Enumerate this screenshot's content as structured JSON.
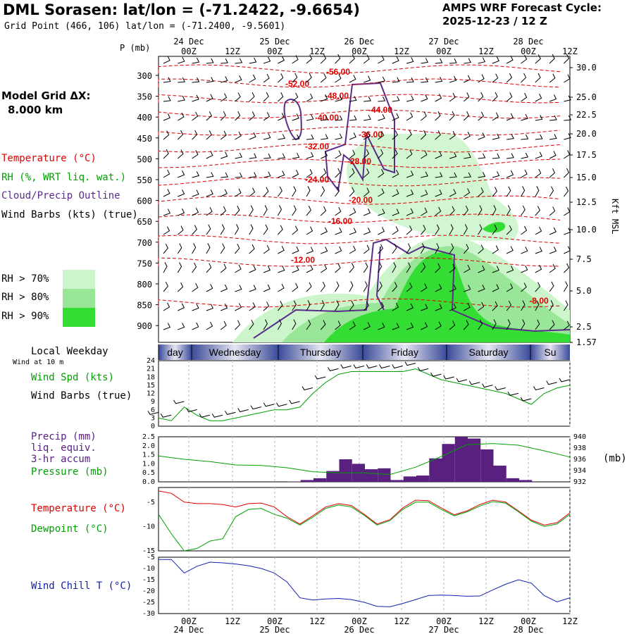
{
  "header": {
    "title": "DML Sorasen:  lat/lon = (-71.2422, -9.6654)",
    "grid_point": "Grid Point (466, 106) lat/lon = (-71.2400, -9.5601)",
    "forecast_line1": "AMPS WRF Forecast Cycle:",
    "forecast_line2": "2025-12-23 / 12  Z"
  },
  "left_labels": {
    "model_grid": "Model Grid ΔX:",
    "model_grid_value": "8.000 km",
    "temperature": "Temperature (°C)",
    "rh": "RH (%, WRT liq. wat.)",
    "cloud": "Cloud/Precip Outline",
    "wind_barbs": "Wind Barbs (kts) (true)",
    "rh70": "RH > 70%",
    "rh80": "RH > 80%",
    "rh90": "RH > 90%",
    "local_weekday": "Local Weekday",
    "wind_10m": "Wind at 10 m",
    "wind_spd": "Wind Spd (kts)",
    "wind_barbs2": "Wind Barbs (true)",
    "precip1": "Precip (mm)",
    "precip2": "liq. equiv.",
    "precip3": "3-hr accum",
    "pressure": "Pressure (mb)",
    "pressure_unit": "(mb)",
    "temp2": "Temperature (°C)",
    "dewpoint": "Dewpoint (°C)",
    "windchill": "Wind Chill T (°C)",
    "p_mb": "P (mb)",
    "kft": "Kft MSL"
  },
  "colors": {
    "temperature": "#e00000",
    "rh": "#00a000",
    "cloud": "#5a2d8a",
    "precip": "#5a2080",
    "windchill": "#1020b0",
    "rh70": "#ccf5cc",
    "rh80": "#99e699",
    "rh90": "#33dd33"
  },
  "time_axis": {
    "hour_labels": [
      "00Z",
      "12Z",
      "00Z",
      "12Z",
      "00Z",
      "12Z",
      "00Z",
      "12Z",
      "00Z",
      "12Z"
    ],
    "date_labels": [
      "24 Dec",
      "25 Dec",
      "26 Dec",
      "27 Dec",
      "28 Dec"
    ],
    "weekdays": [
      "day",
      "Wednesday",
      "Thursday",
      "Friday",
      "Saturday",
      "Su"
    ]
  },
  "chart_data": [
    {
      "type": "heatmap",
      "title": "",
      "y_axis_left_label": "P (mb)",
      "pressure_levels": [
        300,
        350,
        400,
        450,
        500,
        550,
        600,
        650,
        700,
        750,
        800,
        850,
        900
      ],
      "height_labels_kft": [
        "30.0",
        "25.0",
        "22.5",
        "20.0",
        "17.5",
        "15.0",
        "12.5",
        "10.0",
        "7.5",
        "5.0",
        "2.5",
        "1.57"
      ],
      "isotherm_labels": [
        "-56.00",
        "-52.00",
        "-48.00",
        "-44.00",
        "-40.00",
        "-36.00",
        "-32.00",
        "-28.00",
        "-24.00",
        "-20.00",
        "-16.00",
        "-12.00",
        "-8.00"
      ]
    },
    {
      "type": "line",
      "name": "Wind Spd (kts)",
      "ylim": [
        0,
        24
      ],
      "yticks": [
        "0",
        "3",
        "6",
        "9",
        "12",
        "15",
        "18",
        "21",
        "24"
      ],
      "x_hours": [
        0,
        3,
        6,
        9,
        12,
        15,
        18,
        21,
        24,
        27,
        30,
        33,
        36,
        39,
        42,
        45,
        48,
        51,
        54,
        57,
        60,
        63,
        66,
        69,
        72,
        75,
        78,
        81,
        84,
        87,
        90,
        93,
        96
      ],
      "values": [
        3,
        2,
        7,
        4,
        2,
        2,
        3,
        4,
        5,
        6,
        6,
        7,
        12,
        16,
        19,
        20,
        20,
        20,
        20,
        20,
        21,
        19,
        17,
        16,
        15,
        14,
        13,
        12,
        10,
        8,
        12,
        14,
        15
      ]
    },
    {
      "type": "bar",
      "name": "Precip (mm)",
      "ylim": [
        0,
        2.5
      ],
      "yticks": [
        "0.0",
        "0.5",
        "1.0",
        "1.5",
        "2.0",
        "2.5"
      ],
      "x_hours": [
        30,
        33,
        36,
        39,
        42,
        45,
        48,
        51,
        54,
        57,
        60,
        63,
        66,
        69,
        72,
        75,
        78,
        81,
        84
      ],
      "values": [
        0.02,
        0.1,
        0.2,
        0.6,
        1.25,
        1.0,
        0.7,
        0.75,
        0.1,
        0.3,
        0.35,
        1.3,
        2.1,
        2.5,
        2.4,
        1.8,
        0.9,
        0.2,
        0.1
      ]
    },
    {
      "type": "line",
      "name": "Pressure (mb)",
      "ylim": [
        932,
        940
      ],
      "yticks": [
        "932",
        "934",
        "936",
        "938",
        "940"
      ],
      "x_hours": [
        0,
        6,
        12,
        18,
        24,
        30,
        36,
        42,
        48,
        54,
        60,
        66,
        72,
        78,
        84,
        90,
        96
      ],
      "values": [
        936.6,
        936,
        935.6,
        935,
        934.9,
        934.5,
        933.8,
        933.6,
        933.6,
        933.3,
        934.6,
        936.5,
        938.6,
        938.8,
        938.5,
        937.5,
        936.4
      ]
    },
    {
      "type": "line",
      "ylim": [
        -15,
        -2
      ],
      "yticks": [
        "-15",
        "-10",
        "-5"
      ],
      "x_hours": [
        0,
        3,
        6,
        9,
        12,
        15,
        18,
        21,
        24,
        27,
        30,
        33,
        36,
        39,
        42,
        45,
        48,
        51,
        54,
        57,
        60,
        63,
        66,
        69,
        72,
        75,
        78,
        81,
        84,
        87,
        90,
        93,
        96
      ],
      "series": [
        {
          "name": "Temperature (°C)",
          "values": [
            -2.7,
            -3.2,
            -5,
            -5.3,
            -5.3,
            -5.5,
            -6,
            -5.3,
            -5.2,
            -6,
            -8,
            -9.5,
            -7.8,
            -6,
            -5.3,
            -5.7,
            -7.5,
            -9.5,
            -8.6,
            -6.2,
            -4.6,
            -4.7,
            -6.2,
            -7.6,
            -6.8,
            -5.5,
            -4.6,
            -5,
            -6.8,
            -8.7,
            -9.7,
            -9.2,
            -7.2
          ]
        },
        {
          "name": "Dewpoint (°C)",
          "values": [
            -7.5,
            -11.5,
            -15,
            -14.5,
            -13,
            -12.5,
            -8,
            -6.5,
            -6.3,
            -7.5,
            -8.3,
            -9.7,
            -8.1,
            -6.3,
            -5.6,
            -6,
            -7.7,
            -9.7,
            -8.8,
            -6.5,
            -5,
            -5,
            -6.5,
            -7.8,
            -7,
            -5.8,
            -4.9,
            -5.2,
            -7,
            -8.9,
            -10,
            -9.5,
            -7.5
          ]
        }
      ]
    },
    {
      "type": "line",
      "name": "Wind Chill T (°C)",
      "ylim": [
        -30,
        -5
      ],
      "yticks": [
        "-30",
        "-25",
        "-20",
        "-15",
        "-10",
        "-5"
      ],
      "x_hours": [
        0,
        3,
        6,
        9,
        12,
        15,
        18,
        21,
        24,
        27,
        30,
        33,
        36,
        39,
        42,
        45,
        48,
        51,
        54,
        57,
        60,
        63,
        66,
        69,
        72,
        75,
        78,
        81,
        84,
        87,
        90,
        93,
        96
      ],
      "values": [
        -6,
        -6,
        -12,
        -9,
        -7.2,
        -7.5,
        -8,
        -8.8,
        -10,
        -12,
        -16,
        -23,
        -24,
        -23.5,
        -23.3,
        -23.8,
        -25,
        -26.8,
        -27,
        -25.5,
        -23.8,
        -22,
        -21.8,
        -22,
        -22.3,
        -22.2,
        -19.5,
        -17,
        -15,
        -16.5,
        -22,
        -24.8,
        -23
      ]
    }
  ]
}
